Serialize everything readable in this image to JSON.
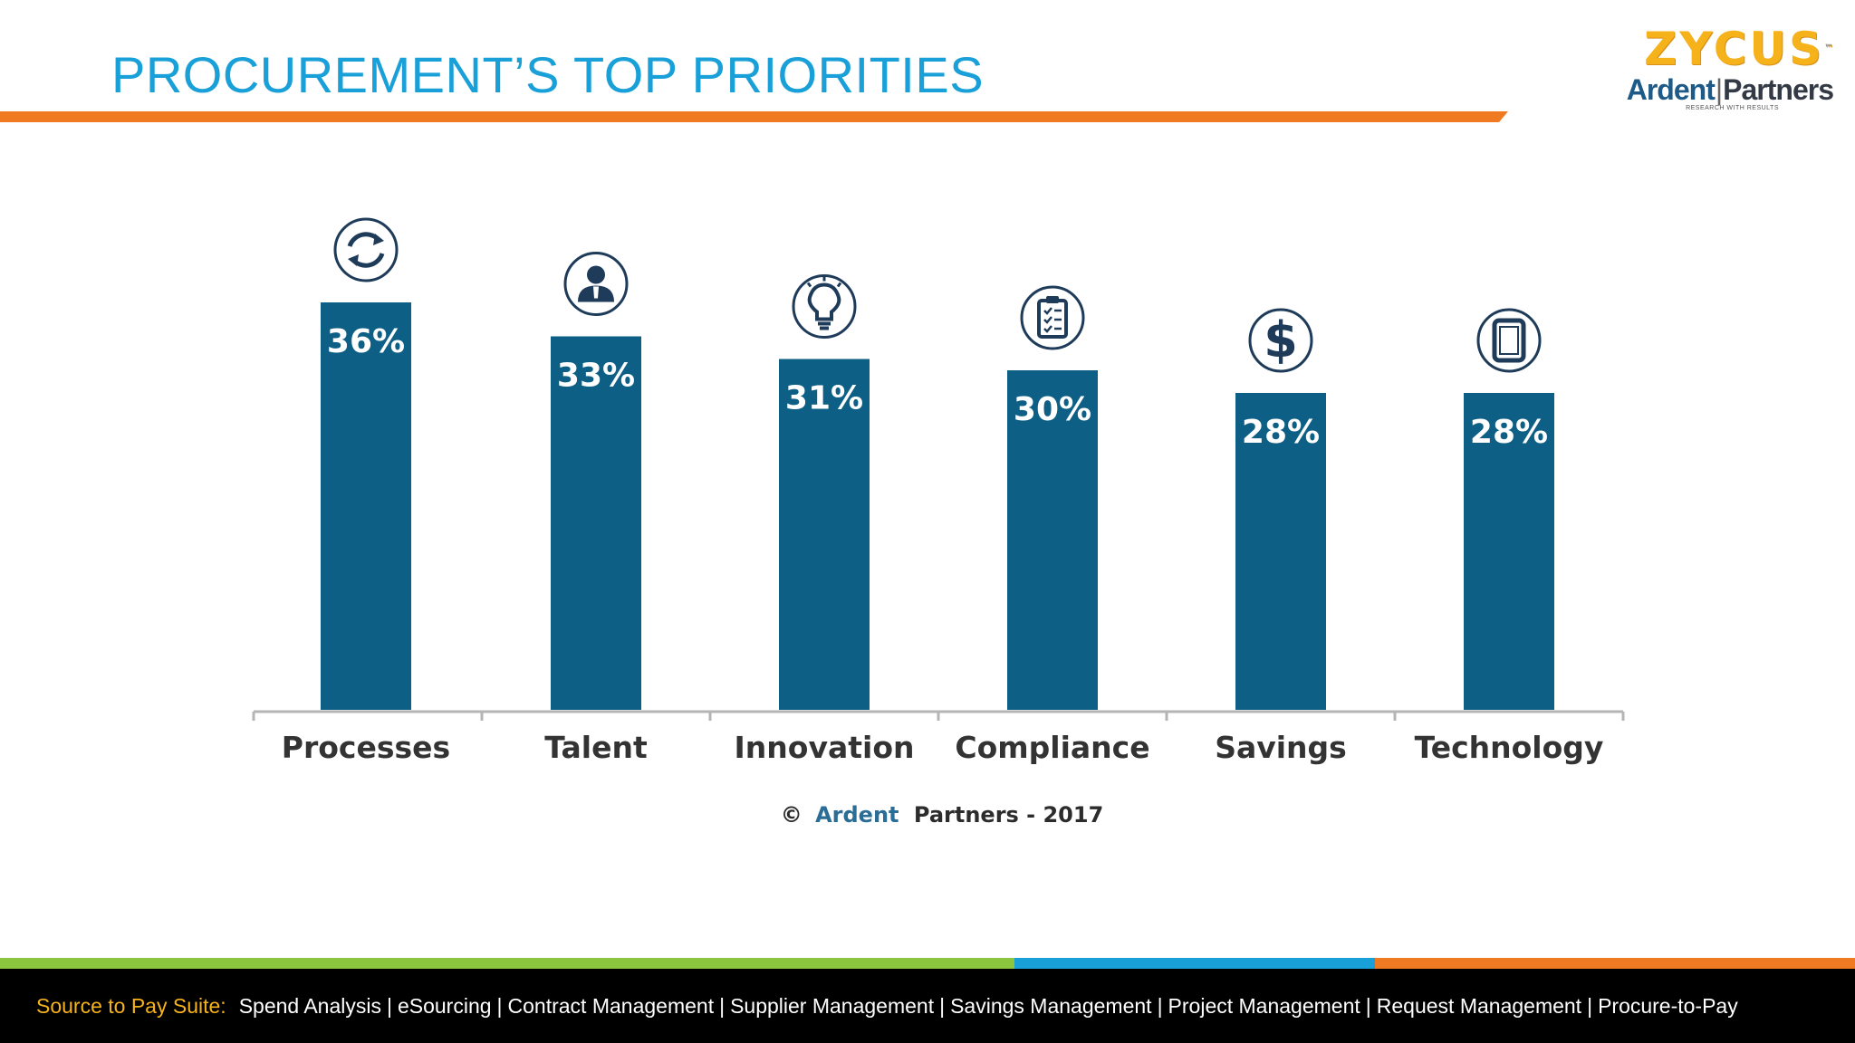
{
  "slide": {
    "title": "PROCUREMENT’S TOP PRIORITIES"
  },
  "logo": {
    "brand": "ZYCUS",
    "tm": "™",
    "ardent": "Ardent",
    "partners": "Partners",
    "tagline": "RESEARCH WITH RESULTS"
  },
  "colors": {
    "bar": "#0e5f86",
    "title": "#1aa0d8",
    "accent_orange": "#f07a22",
    "stripe_green": "#8cc63f",
    "stripe_blue": "#1aa0d8",
    "stripe_orange": "#f07a22",
    "footer_label": "#f6b21a"
  },
  "chart_data": {
    "type": "bar",
    "categories": [
      "Processes",
      "Talent",
      "Innovation",
      "Compliance",
      "Savings",
      "Technology"
    ],
    "values": [
      36,
      33,
      31,
      30,
      28,
      28
    ],
    "value_labels": [
      "36%",
      "33%",
      "31%",
      "30%",
      "28%",
      "28%"
    ],
    "icons": [
      "refresh-icon",
      "person-icon",
      "lightbulb-icon",
      "clipboard-icon",
      "dollar-icon",
      "tablet-icon"
    ],
    "unit": "%",
    "ylim": [
      0,
      45
    ],
    "grid": false,
    "legend": "none",
    "source": {
      "prefix": "©",
      "brand": "Ardent",
      "rest": "Partners - 2017"
    }
  },
  "footer": {
    "label": "Source to Pay Suite:",
    "items": [
      "Spend Analysis",
      "eSourcing",
      "Contract Management",
      "Supplier Management",
      "Savings Management",
      "Project Management",
      "Request Management",
      "Procure-to-Pay"
    ]
  }
}
